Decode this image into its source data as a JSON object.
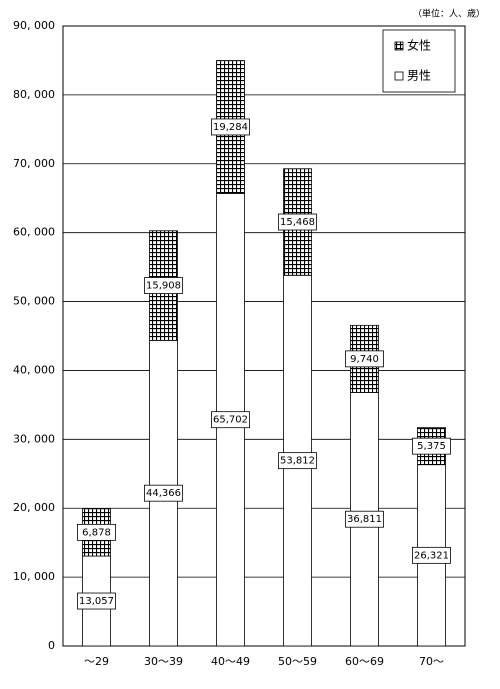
{
  "chart_data": {
    "type": "stacked-bar",
    "unit_note": "（単位：人、歳）",
    "categories": [
      "～29",
      "30～39",
      "40～49",
      "50～59",
      "60～69",
      "70～"
    ],
    "series": [
      {
        "name": "男性",
        "color": "#ffffff",
        "values": [
          13057,
          44366,
          65702,
          53812,
          36811,
          26321
        ],
        "value_labels": [
          "13,057",
          "44,366",
          "65,702",
          "53,812",
          "36,811",
          "26,321"
        ]
      },
      {
        "name": "女性",
        "color": "#000000",
        "pattern": "crosshatch",
        "values": [
          6878,
          15908,
          19284,
          15468,
          9740,
          5375
        ],
        "value_labels": [
          "6,878",
          "15,908",
          "19,284",
          "15,468",
          "9,740",
          "5,375"
        ]
      }
    ],
    "ylim": [
      0,
      90000
    ],
    "yticks": [
      0,
      {
        "value": 10000,
        "label": "10, 000"
      },
      {
        "value": 20000,
        "label": "20, 000"
      },
      {
        "value": 30000,
        "label": "30, 000"
      },
      {
        "value": 40000,
        "label": "40, 000"
      },
      {
        "value": 50000,
        "label": "50, 000"
      },
      {
        "value": 60000,
        "label": "60, 000"
      },
      {
        "value": 70000,
        "label": "70, 000"
      },
      {
        "value": 80000,
        "label": "80, 000"
      },
      {
        "value": 90000,
        "label": "90, 000"
      }
    ],
    "grid": true,
    "legend": "upper right"
  }
}
